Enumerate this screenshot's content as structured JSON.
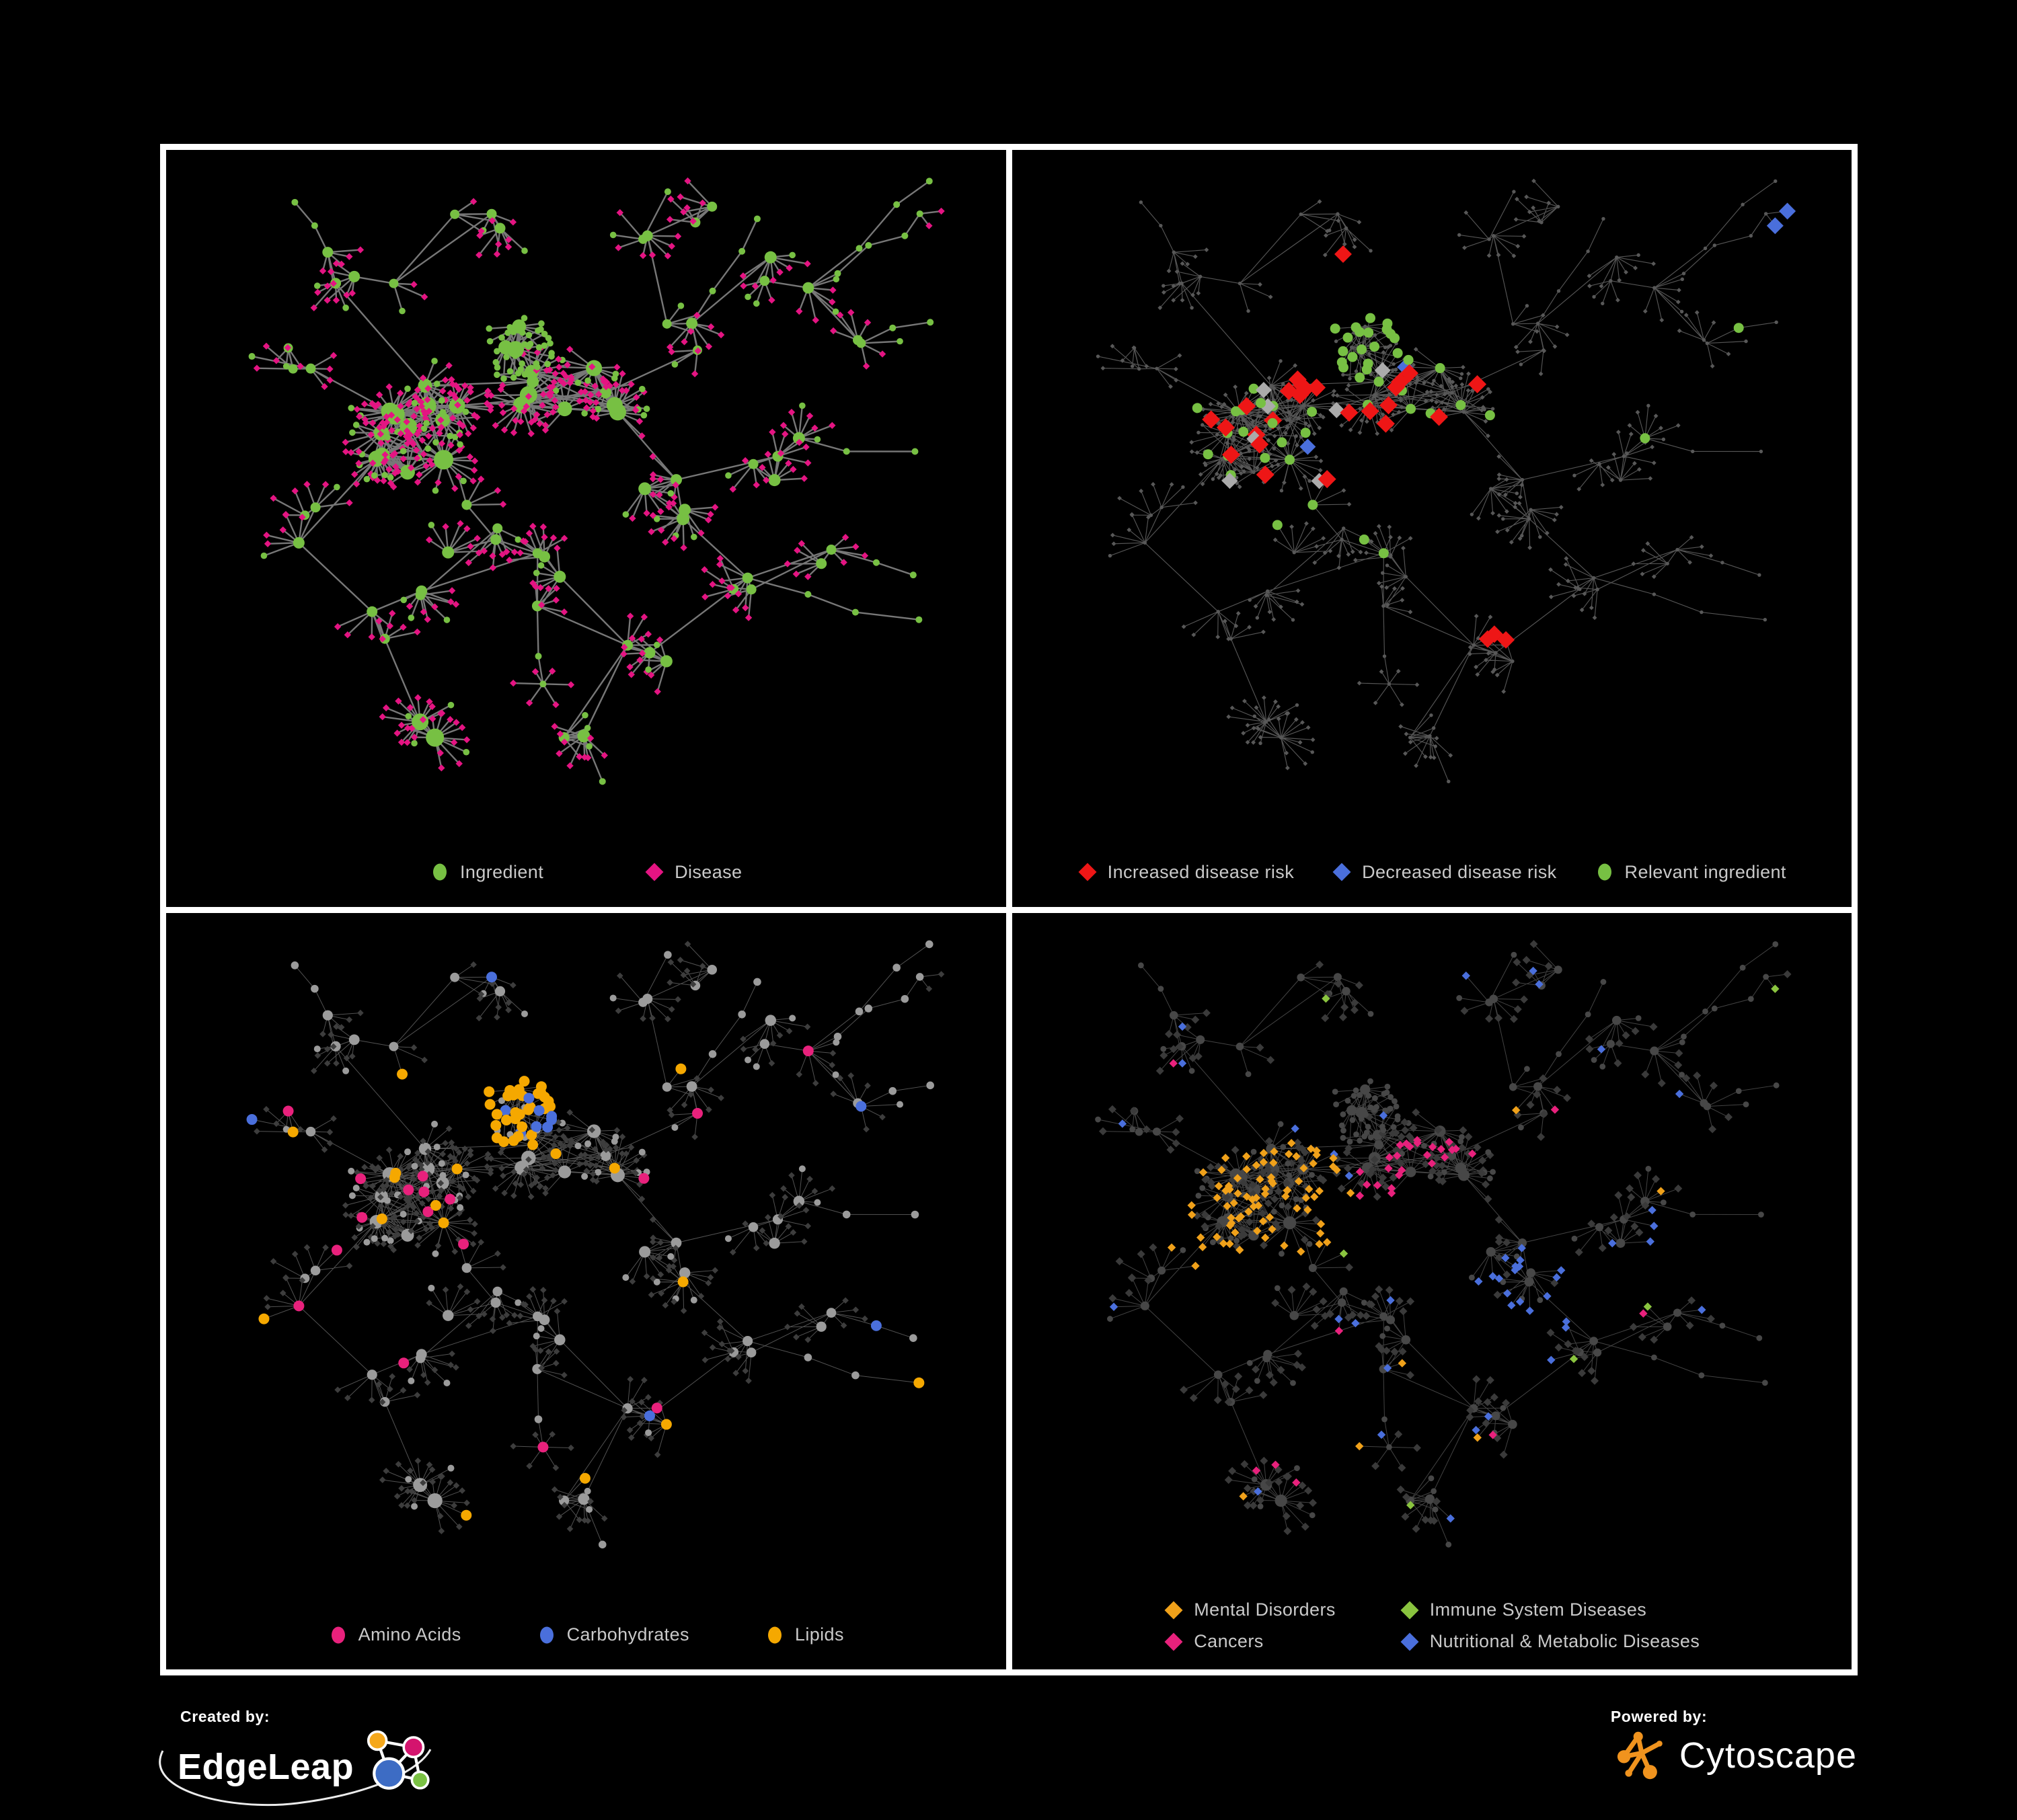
{
  "figure": {
    "background": "#000000",
    "frame_color": "#ffffff"
  },
  "panels": [
    {
      "name": "ingredient-disease-network",
      "legend": {
        "rows": [
          [
            {
              "label": "Ingredient",
              "shape": "circle",
              "color": "#77c043"
            },
            {
              "label": "Disease",
              "shape": "diamond",
              "color": "#e41482"
            }
          ]
        ]
      }
    },
    {
      "name": "disease-risk-network",
      "legend": {
        "rows": [
          [
            {
              "label": "Increased disease risk",
              "shape": "diamond",
              "color": "#ee1616"
            },
            {
              "label": "Decreased disease risk",
              "shape": "diamond",
              "color": "#4a6fdc"
            },
            {
              "label": "Relevant ingredient",
              "shape": "circle",
              "color": "#77c043"
            }
          ]
        ]
      }
    },
    {
      "name": "nutrient-class-network",
      "legend": {
        "rows": [
          [
            {
              "label": "Amino Acids",
              "shape": "circle",
              "color": "#e8217c"
            },
            {
              "label": "Carbohydrates",
              "shape": "circle",
              "color": "#4a6fdc"
            },
            {
              "label": "Lipids",
              "shape": "circle",
              "color": "#f5a800"
            }
          ]
        ]
      }
    },
    {
      "name": "disease-class-network",
      "legend": {
        "rows": [
          [
            {
              "label": "Mental Disorders",
              "shape": "diamond",
              "color": "#f0a11a"
            },
            {
              "label": "Immune System Diseases",
              "shape": "diamond",
              "color": "#8ac43f"
            }
          ],
          [
            {
              "label": "Cancers",
              "shape": "diamond",
              "color": "#e8217c"
            },
            {
              "label": "Nutritional & Metabolic Diseases",
              "shape": "diamond",
              "color": "#4a6fdc"
            }
          ]
        ]
      }
    }
  ],
  "footer": {
    "created_by_label": "Created by:",
    "created_by_brand": "EdgeLeap",
    "powered_by_label": "Powered by:",
    "powered_by_brand": "Cytoscape",
    "edgeleap_colors": {
      "blue": "#3d6cc4",
      "orange": "#f5a81c",
      "pink": "#d4146e",
      "green": "#7ac143"
    },
    "cytoscape_color": "#f0931e"
  },
  "network": {
    "seed": 11,
    "chains": 13,
    "cross_edges": 16,
    "muted_node": "#585858",
    "neutral_highlight": "#ababab",
    "dark_diamond": "#3d3d3d",
    "dark_diamond4": "#3a3a3a",
    "gray_circle": "#9b9b9b",
    "dark_circle": "#474747",
    "edge_styles": [
      {
        "color": "#7d7d7d",
        "width": 2.4,
        "opacity": 0.95
      },
      {
        "color": "#6a6a6a",
        "width": 1.15,
        "opacity": 0.8
      },
      {
        "color": "#b6b6b6",
        "width": 1.0,
        "opacity": 0.45
      },
      {
        "color": "#a8a8a8",
        "width": 1.0,
        "opacity": 0.4
      }
    ]
  }
}
